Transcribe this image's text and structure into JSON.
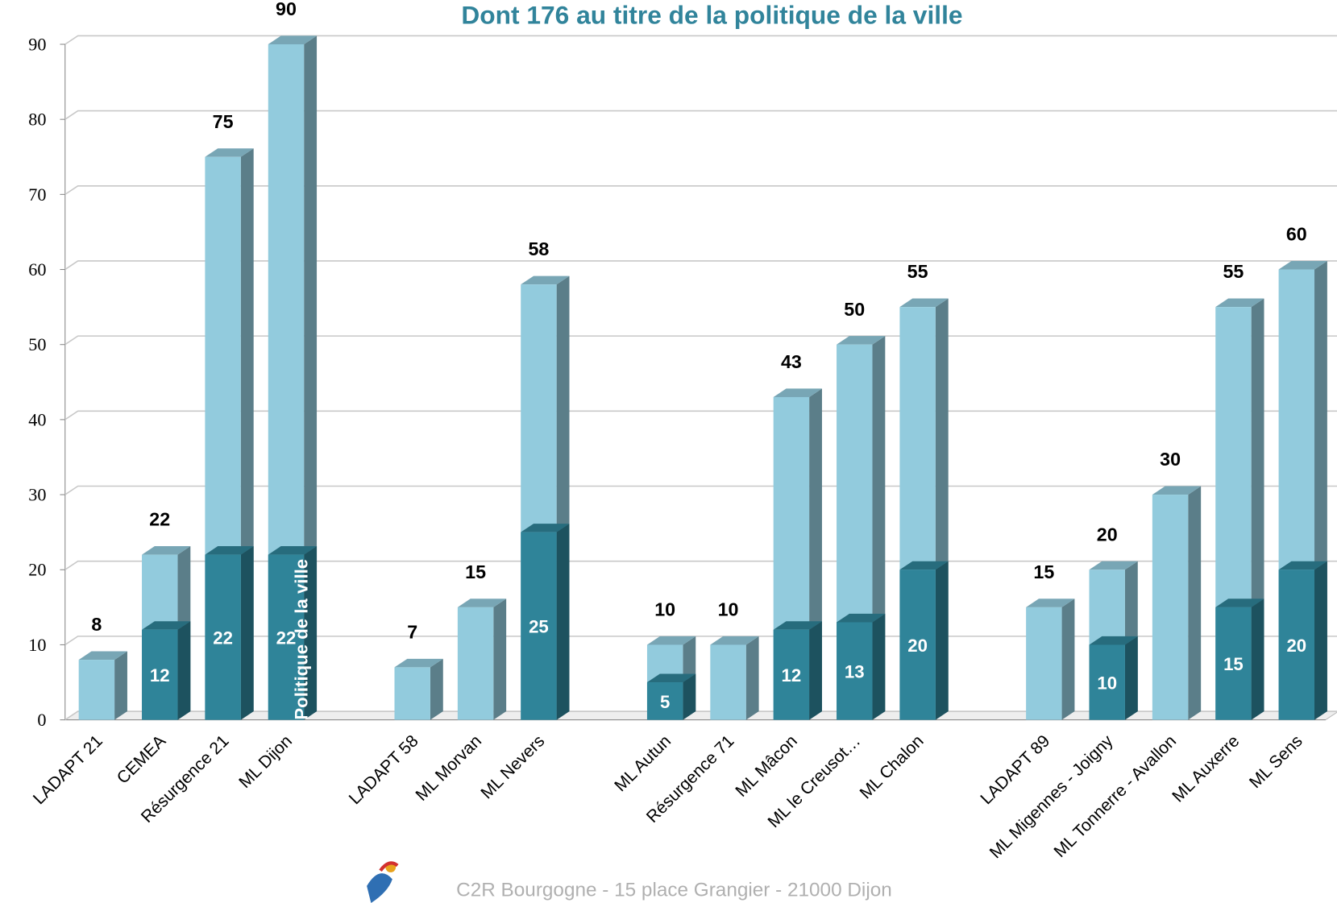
{
  "chart_data": {
    "type": "bar",
    "title": "Dont 176 au titre de la politique de la ville",
    "footer": "C2R Bourgogne - 15 place Grangier - 21000 Dijon",
    "categories": [
      "LADAPT 21",
      "CEMEA",
      "Résurgence 21",
      "ML Dijon",
      null,
      "LADAPT 58",
      "ML Morvan",
      "ML Nevers",
      null,
      "ML Autun",
      "Résurgence 71",
      "ML Mâcon",
      "ML le Creusot…",
      "ML Chalon",
      null,
      "LADAPT 89",
      "ML Migennes - Joigny",
      "ML Tonnerre - Avallon",
      "ML Auxerre",
      "ML Sens"
    ],
    "series": [
      {
        "color": "#92cbdd",
        "values": [
          8,
          22,
          75,
          90,
          null,
          7,
          15,
          58,
          null,
          10,
          10,
          43,
          50,
          55,
          null,
          15,
          20,
          30,
          55,
          60
        ]
      },
      {
        "name": "Politique de la ville",
        "color": "#2f8499",
        "values": [
          null,
          12,
          22,
          22,
          null,
          null,
          null,
          25,
          null,
          5,
          null,
          12,
          13,
          20,
          null,
          null,
          10,
          null,
          15,
          20
        ]
      }
    ],
    "ylim": [
      0,
      90
    ],
    "yticks": [
      0,
      10,
      20,
      30,
      40,
      50,
      60,
      70,
      80,
      90
    ],
    "grid": true
  }
}
